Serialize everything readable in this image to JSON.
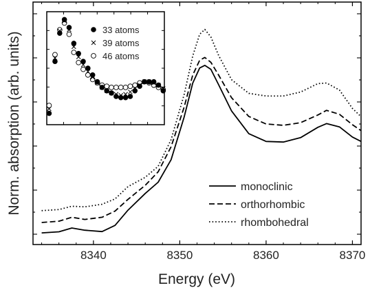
{
  "chart_data": [
    {
      "type": "line",
      "title": "",
      "xlabel": "Energy (eV)",
      "ylabel": "Norm. absorption (arb. units)",
      "xlim": [
        8333,
        8371
      ],
      "ylim": [
        0,
        1.0
      ],
      "xticks": [
        8340,
        8350,
        8360,
        8370
      ],
      "y_tick_labels_shown": false,
      "legend_position": "bottom-right",
      "line_color": "#000000",
      "series": [
        {
          "name": "monoclinic",
          "style": "solid",
          "x": [
            8334,
            8336,
            8337.5,
            8339,
            8341,
            8342.5,
            8344,
            8346,
            8347.5,
            8349,
            8350.5,
            8351.5,
            8352.3,
            8352.9,
            8353.6,
            8354.5,
            8356,
            8358,
            8360,
            8362,
            8364,
            8366,
            8367,
            8368.5,
            8370,
            8371
          ],
          "y": [
            0.006,
            0.011,
            0.028,
            0.018,
            0.012,
            0.04,
            0.109,
            0.185,
            0.236,
            0.338,
            0.531,
            0.685,
            0.754,
            0.766,
            0.748,
            0.678,
            0.559,
            0.456,
            0.421,
            0.418,
            0.438,
            0.485,
            0.502,
            0.487,
            0.441,
            0.421
          ]
        },
        {
          "name": "orthorhombic",
          "style": "dashed",
          "x": [
            8334,
            8336,
            8337.5,
            8339,
            8341,
            8342.5,
            8344,
            8346,
            8347.5,
            8349,
            8350.5,
            8351.5,
            8352.3,
            8352.9,
            8353.6,
            8354.5,
            8356,
            8358,
            8360,
            8362,
            8364,
            8366,
            8367,
            8368.5,
            8370,
            8371
          ],
          "y": [
            0.053,
            0.059,
            0.077,
            0.067,
            0.077,
            0.105,
            0.158,
            0.222,
            0.283,
            0.397,
            0.576,
            0.722,
            0.789,
            0.802,
            0.78,
            0.722,
            0.619,
            0.534,
            0.5,
            0.494,
            0.506,
            0.541,
            0.562,
            0.544,
            0.497,
            0.47
          ]
        },
        {
          "name": "rhombohedral",
          "style": "dotted",
          "x": [
            8334,
            8336,
            8337.5,
            8339,
            8341,
            8342.5,
            8344,
            8346,
            8347.5,
            8349,
            8350.5,
            8351.5,
            8352.3,
            8352.9,
            8353.6,
            8354.5,
            8356,
            8358,
            8360,
            8362,
            8364,
            8366,
            8367,
            8368.5,
            8370,
            8371
          ],
          "y": [
            0.107,
            0.112,
            0.127,
            0.124,
            0.136,
            0.16,
            0.216,
            0.258,
            0.308,
            0.429,
            0.633,
            0.808,
            0.907,
            0.929,
            0.895,
            0.811,
            0.701,
            0.639,
            0.627,
            0.627,
            0.645,
            0.683,
            0.686,
            0.654,
            0.571,
            0.533
          ]
        }
      ]
    },
    {
      "type": "scatter",
      "title": "",
      "xlabel": "",
      "ylabel": "",
      "xlim": [
        0,
        1
      ],
      "ylim": [
        0,
        1
      ],
      "tick_labels_shown": false,
      "legend_position": "top-right",
      "series": [
        {
          "name": "33 atoms",
          "marker": "filled-circle",
          "x": [
            0.02,
            0.07,
            0.11,
            0.15,
            0.19,
            0.23,
            0.27,
            0.31,
            0.35,
            0.39,
            0.43,
            0.47,
            0.51,
            0.55,
            0.59,
            0.63,
            0.67,
            0.71,
            0.75,
            0.79,
            0.83,
            0.87,
            0.91,
            0.95,
            0.99
          ],
          "y": [
            0.1,
            0.56,
            0.81,
            0.93,
            0.86,
            0.72,
            0.63,
            0.56,
            0.5,
            0.44,
            0.38,
            0.33,
            0.3,
            0.28,
            0.25,
            0.24,
            0.24,
            0.25,
            0.3,
            0.34,
            0.38,
            0.38,
            0.38,
            0.35,
            0.3
          ]
        },
        {
          "name": "39 atoms",
          "marker": "cross",
          "x": [
            0.02,
            0.07,
            0.11,
            0.15,
            0.19,
            0.23,
            0.27,
            0.31,
            0.35,
            0.39,
            0.43,
            0.47,
            0.51,
            0.55,
            0.59,
            0.63,
            0.67,
            0.71,
            0.75,
            0.79,
            0.83,
            0.87,
            0.91,
            0.95,
            0.99
          ],
          "y": [
            0.14,
            0.59,
            0.83,
            0.92,
            0.84,
            0.69,
            0.6,
            0.53,
            0.47,
            0.42,
            0.37,
            0.33,
            0.3,
            0.28,
            0.27,
            0.26,
            0.27,
            0.29,
            0.32,
            0.35,
            0.38,
            0.38,
            0.37,
            0.35,
            0.32
          ]
        },
        {
          "name": "46 atoms",
          "marker": "open-circle",
          "x": [
            0.02,
            0.07,
            0.11,
            0.15,
            0.19,
            0.23,
            0.27,
            0.31,
            0.35,
            0.39,
            0.43,
            0.47,
            0.51,
            0.55,
            0.59,
            0.63,
            0.67,
            0.71,
            0.75,
            0.79,
            0.83,
            0.87,
            0.91,
            0.95,
            0.99
          ],
          "y": [
            0.17,
            0.62,
            0.84,
            0.9,
            0.8,
            0.64,
            0.55,
            0.49,
            0.44,
            0.4,
            0.37,
            0.35,
            0.34,
            0.33,
            0.33,
            0.33,
            0.33,
            0.34,
            0.35,
            0.37,
            0.38,
            0.37,
            0.35,
            0.33,
            0.31
          ]
        }
      ]
    }
  ]
}
